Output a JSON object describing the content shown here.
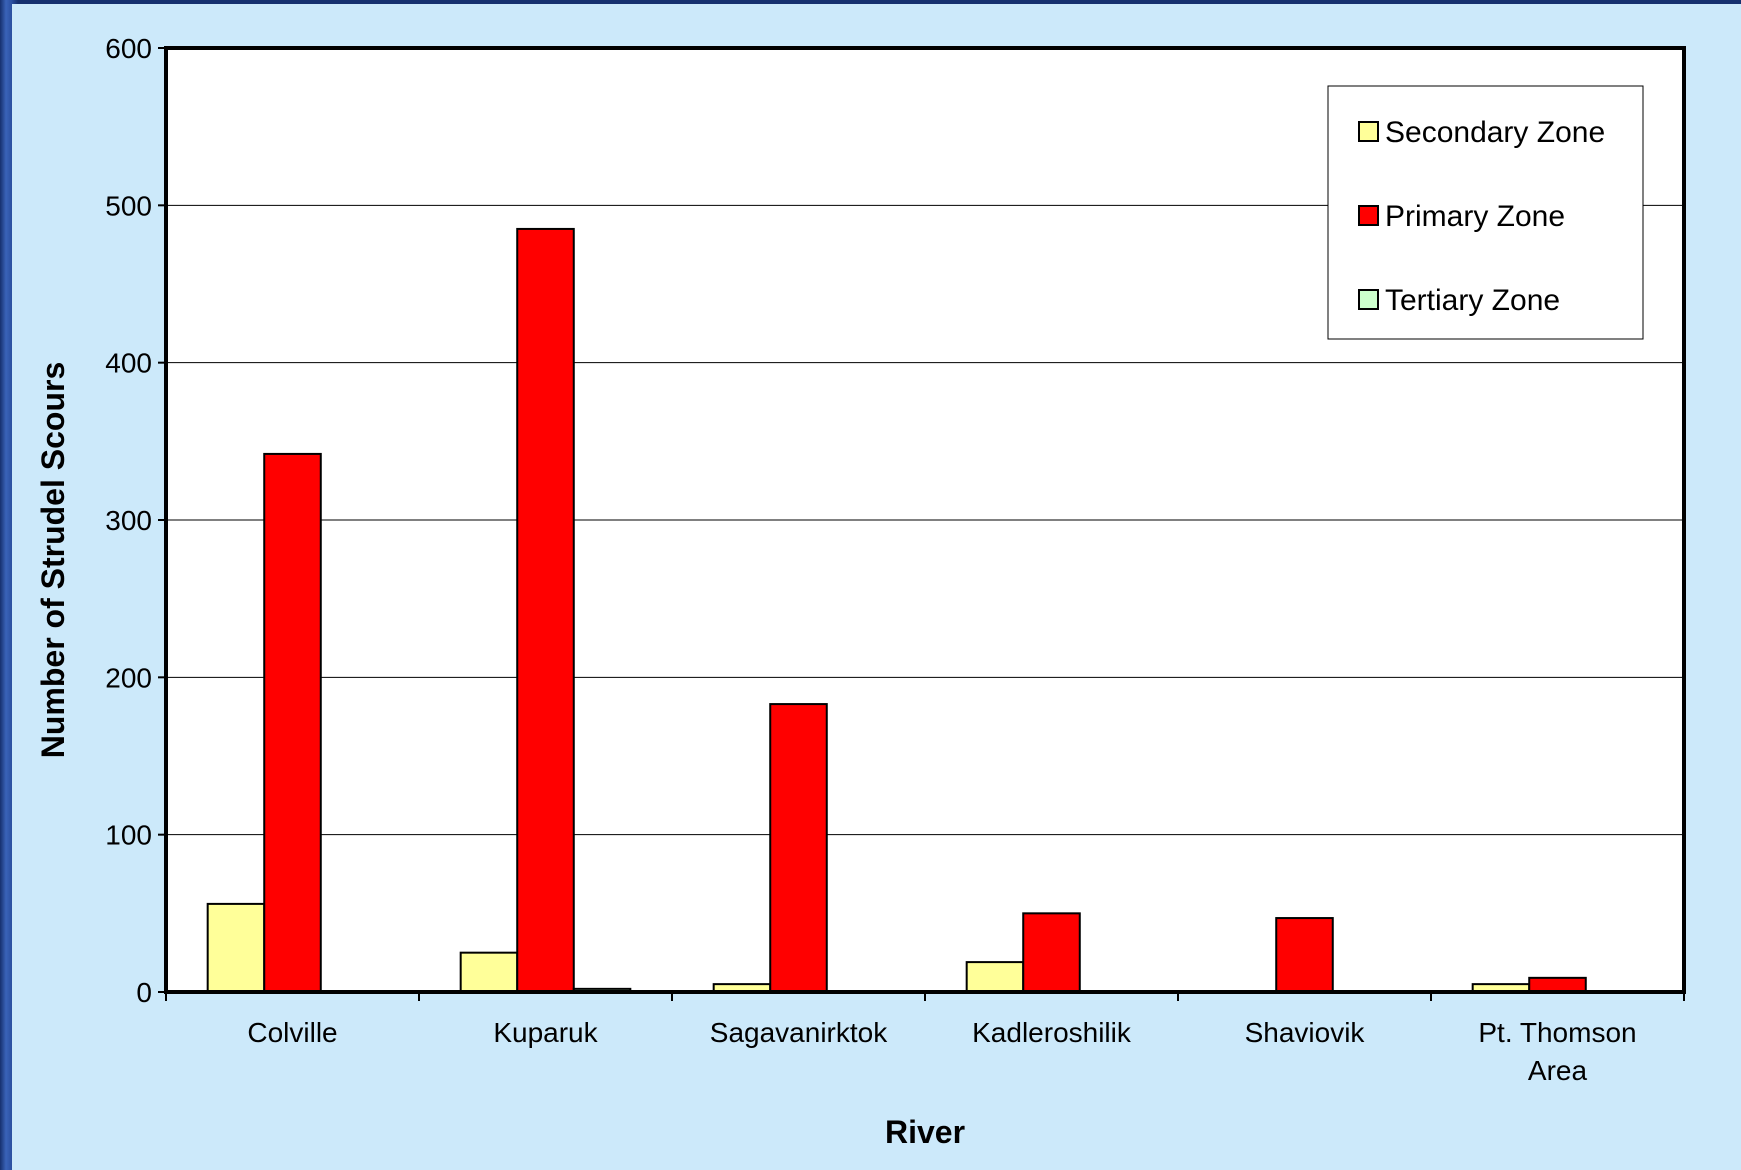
{
  "chart_data": {
    "type": "bar",
    "title": "",
    "xlabel": "River",
    "ylabel": "Number of Strudel Scours",
    "ylim": [
      0,
      600
    ],
    "yticks": [
      0,
      100,
      200,
      300,
      400,
      500,
      600
    ],
    "grid": true,
    "legend_position": "top-right",
    "categories": [
      [
        "Colville"
      ],
      [
        "Kuparuk"
      ],
      [
        "Sagavanirktok"
      ],
      [
        "Kadleroshilik"
      ],
      [
        "Shaviovik"
      ],
      [
        "Pt. Thomson",
        "Area"
      ]
    ],
    "series": [
      {
        "name": "Secondary Zone",
        "color": "#ffff99",
        "values": [
          56,
          25,
          5,
          19,
          0,
          5
        ]
      },
      {
        "name": "Primary Zone",
        "color": "#ff0000",
        "values": [
          342,
          485,
          183,
          50,
          47,
          9
        ]
      },
      {
        "name": "Tertiary Zone",
        "color": "#ccffcc",
        "values": [
          0,
          2,
          0,
          0,
          0,
          0
        ]
      }
    ],
    "legend_order": [
      0,
      1,
      2
    ]
  },
  "colors": {
    "panel_background": "#cce9fa",
    "plot_background": "#ffffff",
    "frame": "#1f3f86"
  }
}
